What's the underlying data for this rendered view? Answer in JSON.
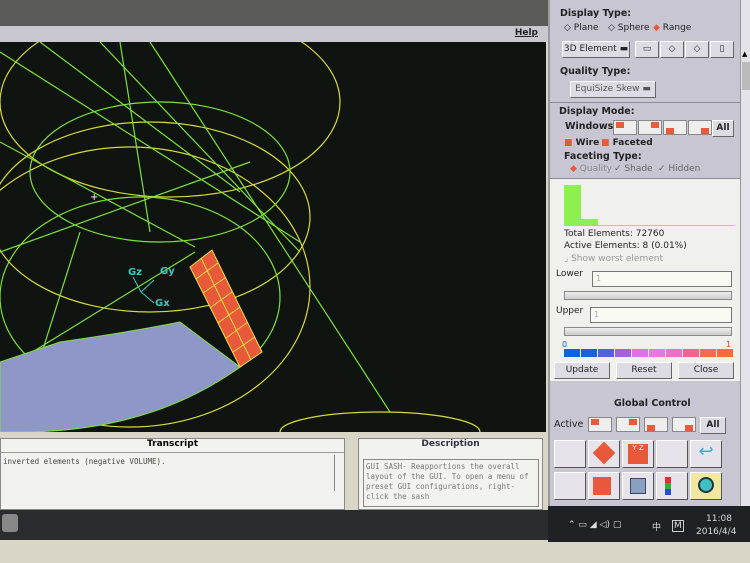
{
  "menu": {
    "help": "Help"
  },
  "viewport": {
    "axes": {
      "z": "Gz",
      "y": "Gy",
      "x": "Gx"
    }
  },
  "panel": {
    "display_type_label": "Display Type:",
    "radios": [
      {
        "label": "Plane",
        "selected": false
      },
      {
        "label": "Sphere",
        "selected": false
      },
      {
        "label": "Range",
        "selected": true
      }
    ],
    "element_select": "3D Element",
    "quality_type_label": "Quality Type:",
    "quality_select": "EquiSize Skew",
    "display_mode_label": "Display Mode:",
    "windows_label": "Windows",
    "all": "All",
    "wire": "Wire",
    "faceted": "Faceted",
    "faceting_type_label": "Faceting Type:",
    "faceting": [
      {
        "label": "Quality",
        "selected": true
      },
      {
        "label": "Shade",
        "selected": false
      },
      {
        "label": "Hidden",
        "selected": false
      }
    ],
    "total_elements": "Total Elements:   72760",
    "active_elements": "Active Elements: 8 (0.01%)",
    "show_worst": "Show worst element",
    "lower_label": "Lower",
    "lower_value": "1",
    "upper_label": "Upper",
    "upper_value": "1",
    "scale_min": "0",
    "scale_max": "1",
    "scale_colors": [
      "#1060e0",
      "#1a5fdc",
      "#5560e0",
      "#a060e0",
      "#e070e8",
      "#e878e0",
      "#f070c8",
      "#f86090",
      "#fa6a50",
      "#fb6a38"
    ],
    "update": "Update",
    "reset": "Reset",
    "close": "Close",
    "global_control": "Global Control",
    "active_label": "Active"
  },
  "transcript": {
    "title": "Transcript",
    "text": "inverted elements (negative VOLUME)."
  },
  "description": {
    "title": "Description",
    "text": "GUI SASH- Reapportions the overall layout of the GUI. To open a menu of preset GUI configurations, right-click the sash"
  },
  "tray": {
    "time": "11:08",
    "date": "2016/4/4",
    "ime": "中",
    "m": "M"
  }
}
